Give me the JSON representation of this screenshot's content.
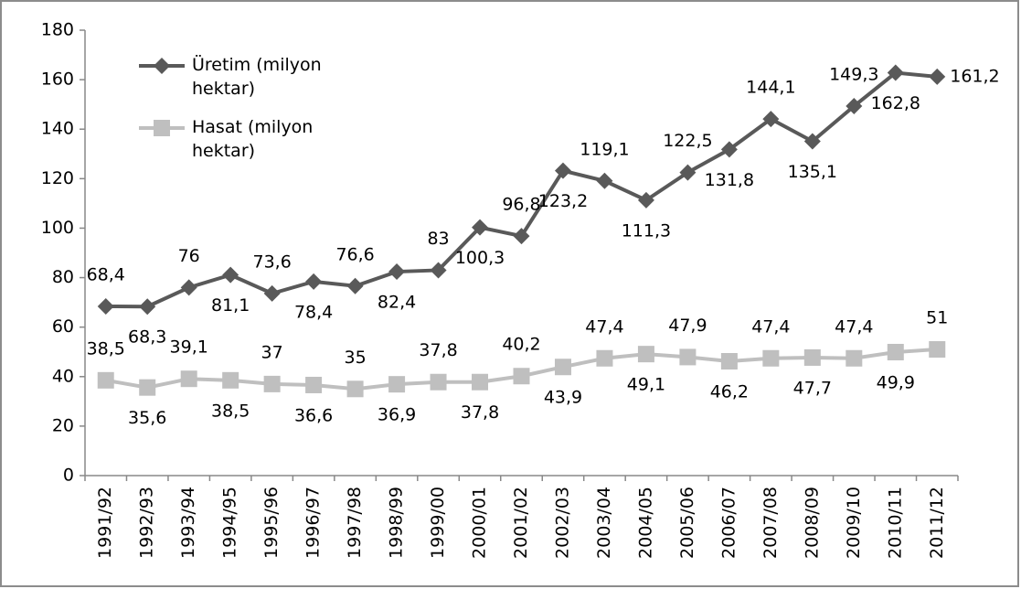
{
  "chart_data": {
    "type": "line",
    "categories": [
      "1991/92",
      "1992/93",
      "1993/94",
      "1994/95",
      "1995/96",
      "1996/97",
      "1997/98",
      "1998/99",
      "1999/00",
      "2000/01",
      "2001/02",
      "2002/03",
      "2003/04",
      "2004/05",
      "2005/06",
      "2006/07",
      "2007/08",
      "2008/09",
      "2009/10",
      "2010/11",
      "2011/12"
    ],
    "series": [
      {
        "name": "Üretim (milyon hektar)",
        "color": "#595959",
        "marker": "diamond",
        "values": [
          68.4,
          68.3,
          76,
          81.1,
          73.6,
          78.4,
          76.6,
          82.4,
          83,
          100.3,
          96.8,
          123.2,
          119.1,
          111.3,
          122.5,
          131.8,
          144.1,
          135.1,
          149.3,
          162.8,
          161.2
        ],
        "value_labels": [
          "68,4",
          "68,3",
          "76",
          "81,1",
          "73,6",
          "78,4",
          "76,6",
          "82,4",
          "83",
          "100,3",
          "96,8",
          "123,2",
          "119,1",
          "111,3",
          "122,5",
          "131,8",
          "144,1",
          "135,1",
          "149,3",
          "162,8",
          "161,2"
        ]
      },
      {
        "name": "Hasat (milyon hektar)",
        "color": "#bfbfbf",
        "marker": "square",
        "values": [
          38.5,
          35.6,
          39.1,
          38.5,
          37,
          36.6,
          35,
          36.9,
          37.8,
          37.8,
          40.2,
          43.9,
          47.4,
          49.1,
          47.9,
          46.2,
          47.4,
          47.7,
          47.4,
          49.9,
          51
        ],
        "value_labels": [
          "38,5",
          "35,6",
          "39,1",
          "38,5",
          "37",
          "36,6",
          "35",
          "36,9",
          "37,8",
          "37,8",
          "40,2",
          "43,9",
          "47,4",
          "49,1",
          "47,9",
          "46,2",
          "47,4",
          "47,7",
          "47,4",
          "49,9",
          "51"
        ]
      }
    ],
    "ylim": [
      0,
      180
    ],
    "yticks": [
      0,
      20,
      40,
      60,
      80,
      100,
      120,
      140,
      160,
      180
    ],
    "grid": false,
    "legend": "upper left"
  }
}
